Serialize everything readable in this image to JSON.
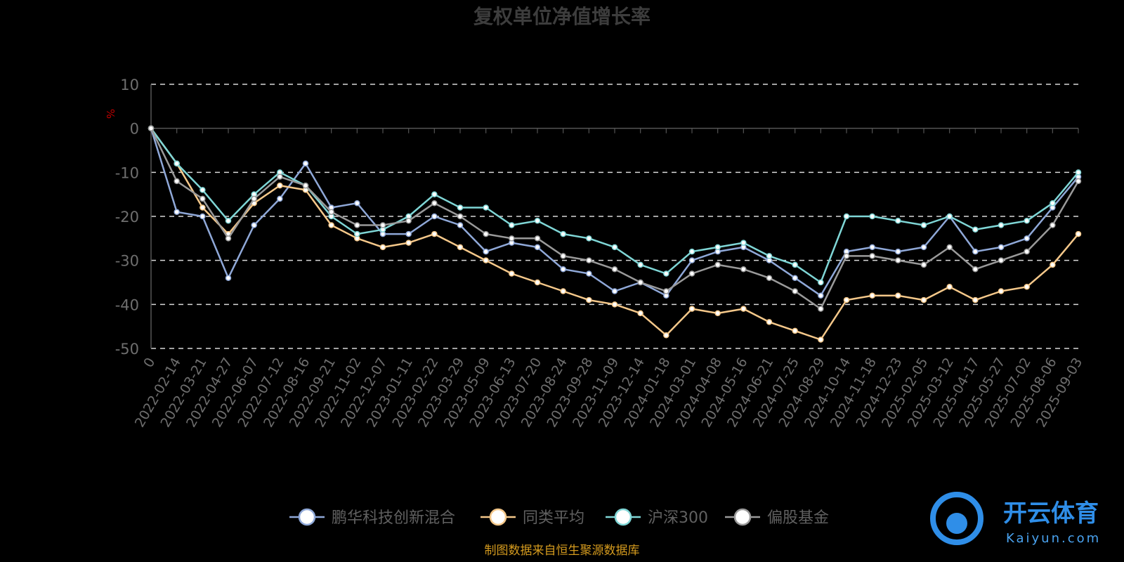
{
  "chart_data": {
    "type": "line",
    "title": "复权单位净值增长率",
    "ylabel": "%",
    "ylim": [
      -50,
      10
    ],
    "yticks": [
      "10",
      "0",
      "-10",
      "-20",
      "-30",
      "-40",
      "-50"
    ],
    "grid": true,
    "legend_position": "bottom",
    "x": [
      "0",
      "2022-02-14",
      "2022-03-21",
      "2022-04-27",
      "2022-06-07",
      "2022-07-12",
      "2022-08-16",
      "2022-09-21",
      "2022-11-02",
      "2022-12-07",
      "2023-01-11",
      "2023-02-22",
      "2023-03-29",
      "2023-05-09",
      "2023-06-13",
      "2023-07-20",
      "2023-08-24",
      "2023-09-28",
      "2023-11-09",
      "2023-12-14",
      "2024-01-18",
      "2024-03-01",
      "2024-04-08",
      "2024-05-16",
      "2024-06-21",
      "2024-07-25",
      "2024-08-29",
      "2024-10-14",
      "2024-11-18",
      "2024-12-23",
      "2025-02-05",
      "2025-03-12",
      "2025-04-17",
      "2025-05-27",
      "2025-07-02",
      "2025-08-06",
      "2025-09-03"
    ],
    "series": [
      {
        "name": "鹏华科技创新混合",
        "color": "#8fa8d8",
        "values": [
          0,
          -19,
          -20,
          -34,
          -22,
          -16,
          -8,
          -18,
          -17,
          -24,
          -24,
          -20,
          -22,
          -28,
          -26,
          -27,
          -32,
          -33,
          -37,
          -35,
          -38,
          -30,
          -28,
          -27,
          -30,
          -34,
          -38,
          -28,
          -27,
          -28,
          -27,
          -20,
          -28,
          -27,
          -25,
          -18,
          -11
        ]
      },
      {
        "name": "同类平均",
        "color": "#f5c88a",
        "values": [
          0,
          -8,
          -18,
          -24,
          -17,
          -13,
          -14,
          -22,
          -25,
          -27,
          -26,
          -24,
          -27,
          -30,
          -33,
          -35,
          -37,
          -39,
          -40,
          -42,
          -47,
          -41,
          -42,
          -41,
          -44,
          -46,
          -48,
          -39,
          -38,
          -38,
          -39,
          -36,
          -39,
          -37,
          -36,
          -31,
          -24
        ]
      },
      {
        "name": "沪深300",
        "color": "#7fd6d6",
        "values": [
          0,
          -8,
          -14,
          -21,
          -15,
          -10,
          -13,
          -20,
          -24,
          -23,
          -20,
          -15,
          -18,
          -18,
          -22,
          -21,
          -24,
          -25,
          -27,
          -31,
          -33,
          -28,
          -27,
          -26,
          -29,
          -31,
          -35,
          -20,
          -20,
          -21,
          -22,
          -20,
          -23,
          -22,
          -21,
          -17,
          -10
        ]
      },
      {
        "name": "偏股基金",
        "color": "#9a9a9a",
        "values": [
          0,
          -12,
          -16,
          -25,
          -16,
          -11,
          -13,
          -19,
          -22,
          -22,
          -21,
          -17,
          -20,
          -24,
          -25,
          -25,
          -29,
          -30,
          -32,
          -35,
          -37,
          -33,
          -31,
          -32,
          -34,
          -37,
          -41,
          -29,
          -29,
          -30,
          -31,
          -27,
          -32,
          -30,
          -28,
          -22,
          -12
        ]
      }
    ]
  },
  "source_note": "制图数据来自恒生聚源数据库",
  "watermark": {
    "main": "开云体育",
    "sub": "Kaiyun.com"
  }
}
